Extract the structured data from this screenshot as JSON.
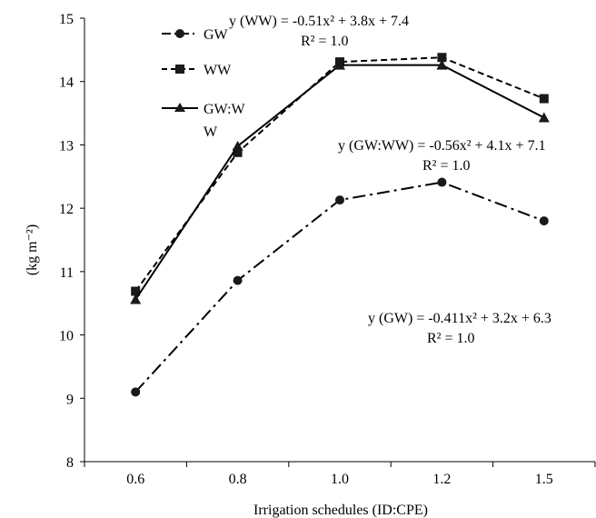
{
  "chart_data": {
    "type": "line",
    "title": "",
    "xlabel": "Irrigation schedules (ID:CPE)",
    "ylabel": "(kg m⁻²)",
    "x_categories": [
      "0.6",
      "0.8",
      "1.0",
      "1.2",
      "1.5"
    ],
    "ylim": [
      8,
      15
    ],
    "y_ticks": [
      8,
      9,
      10,
      11,
      12,
      13,
      14,
      15
    ],
    "grid": false,
    "legend_position": "top-left",
    "series": [
      {
        "name": "GW",
        "marker": "circle",
        "line_style": "dash-dot",
        "values": [
          9.1,
          10.86,
          12.13,
          12.41,
          11.8
        ]
      },
      {
        "name": "WW",
        "marker": "square",
        "line_style": "dashed",
        "values": [
          10.69,
          12.88,
          14.31,
          14.38,
          13.73
        ]
      },
      {
        "name": "GW:WW",
        "legend_lines": [
          "GW:W",
          "W"
        ],
        "marker": "triangle",
        "line_style": "solid",
        "values": [
          10.56,
          12.98,
          14.26,
          14.26,
          13.43
        ]
      }
    ],
    "annotations": [
      {
        "id": "ww",
        "lines": [
          "y (WW) = -0.51x² + 3.8x + 7.4",
          "R² = 1.0"
        ]
      },
      {
        "id": "gwww",
        "lines": [
          "y (GW:WW) = -0.56x² + 4.1x + 7.1",
          "R² = 1.0"
        ]
      },
      {
        "id": "gw",
        "lines": [
          "y (GW) = -0.411x² + 3.2x + 6.3",
          "R² = 1.0"
        ]
      }
    ]
  }
}
